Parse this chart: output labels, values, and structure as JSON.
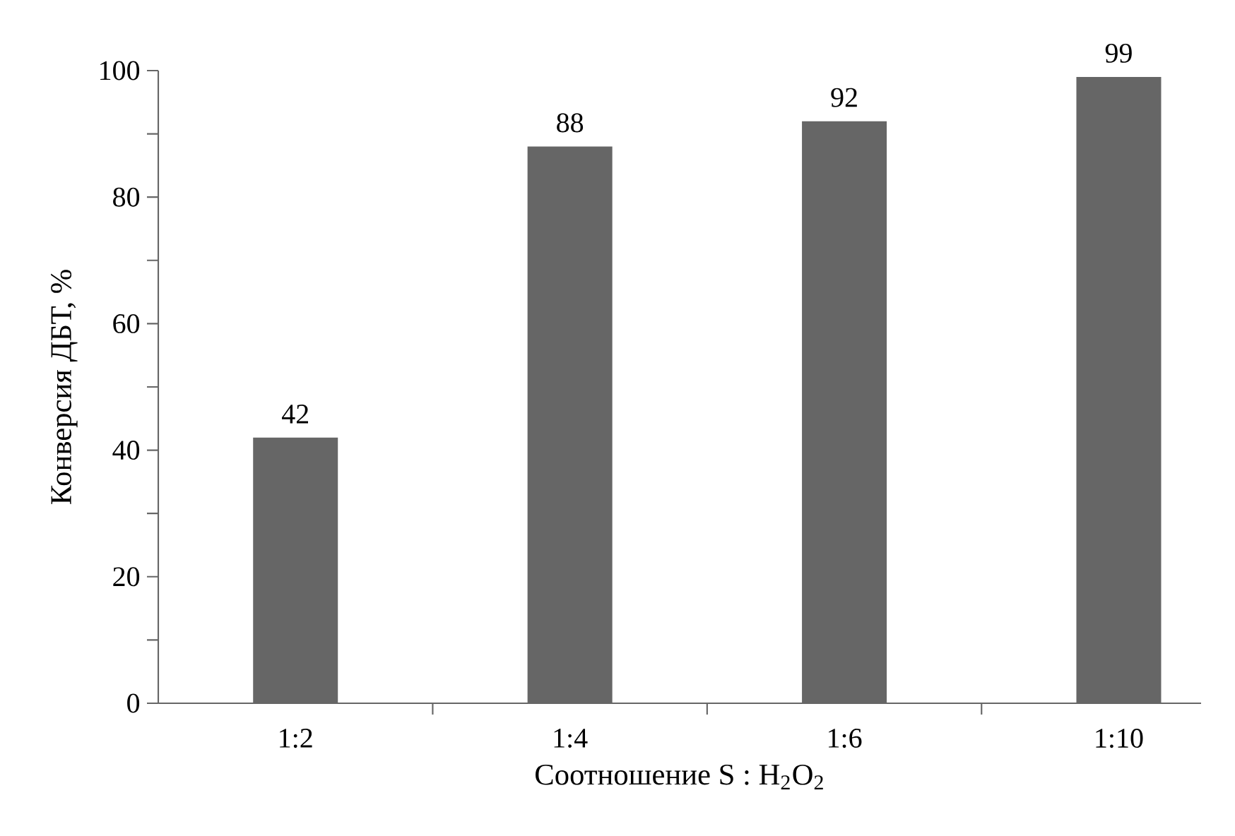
{
  "chart_data": {
    "type": "bar",
    "xlabel": "Соотношение S : H$_{2}$O$_{2}$",
    "ylabel": "Конверсия ДБТ, %",
    "categories": [
      "1:2",
      "1:4",
      "1:6",
      "1:10"
    ],
    "values": [
      42,
      88,
      92,
      99
    ],
    "color": "#666666",
    "ylim": [
      0,
      100
    ],
    "yticks": [
      0,
      {
        "value": 10,
        "label": null
      },
      20,
      {
        "value": 30,
        "label": null
      },
      40,
      {
        "value": 50,
        "label": null
      },
      60,
      {
        "value": 70,
        "label": null
      },
      80,
      {
        "value": 90,
        "label": null
      },
      100
    ],
    "data_labels": true,
    "grid": false
  }
}
